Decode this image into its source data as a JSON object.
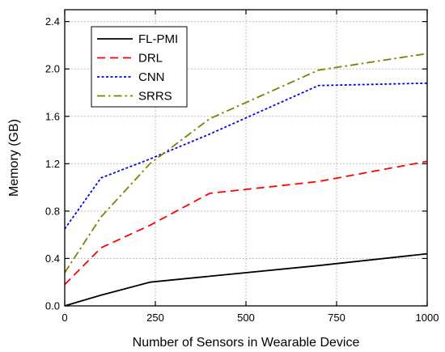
{
  "chart_data": {
    "type": "line",
    "title": "",
    "xlabel": "Number of Sensors in Wearable Device",
    "ylabel": "Memory (GB)",
    "xlim": [
      0,
      1000
    ],
    "ylim": [
      0,
      2.5
    ],
    "xticks": [
      0,
      250,
      500,
      750,
      1000
    ],
    "xtick_labels": [
      "0",
      "250",
      "500",
      "750",
      "1000"
    ],
    "yticks": [
      0.0,
      0.4,
      0.8,
      1.2,
      1.6,
      2.0,
      2.4
    ],
    "ytick_labels": [
      "0.0",
      "0.4",
      "0.8",
      "1.2",
      "1.6",
      "2.0",
      "2.4"
    ],
    "grid": true,
    "legend_position": "top-left",
    "series": [
      {
        "name": "FL-PMI",
        "color": "#000000",
        "dash": "solid",
        "x": [
          0,
          100,
          235,
          400,
          700,
          1000
        ],
        "y": [
          0.0,
          0.09,
          0.2,
          0.25,
          0.34,
          0.44
        ]
      },
      {
        "name": "DRL",
        "color": "#ff0000",
        "dash": "dash",
        "x": [
          0,
          100,
          235,
          400,
          700,
          1000
        ],
        "y": [
          0.18,
          0.49,
          0.68,
          0.95,
          1.05,
          1.22
        ]
      },
      {
        "name": "CNN",
        "color": "#0000ff",
        "dash": "dot",
        "x": [
          0,
          100,
          235,
          400,
          700,
          1000
        ],
        "y": [
          0.65,
          1.08,
          1.24,
          1.45,
          1.86,
          1.88
        ]
      },
      {
        "name": "SRRS",
        "color": "#808000",
        "dash": "dashdot",
        "x": [
          0,
          100,
          235,
          400,
          700,
          1000
        ],
        "y": [
          0.28,
          0.75,
          1.2,
          1.58,
          1.99,
          2.13
        ]
      }
    ]
  }
}
